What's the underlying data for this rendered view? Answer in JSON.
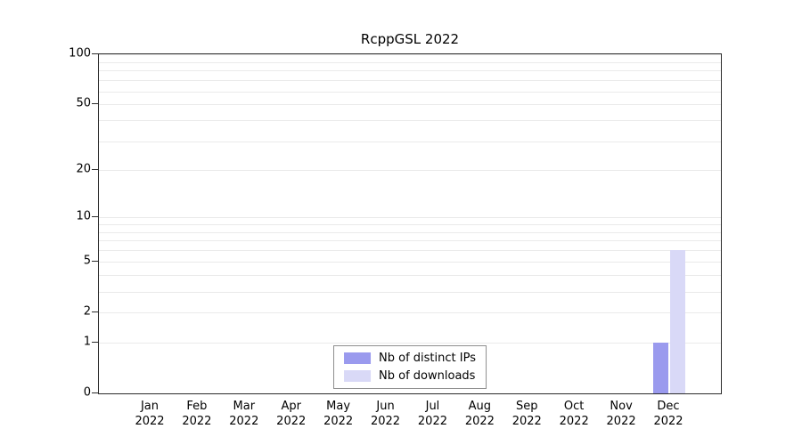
{
  "chart_data": {
    "type": "bar",
    "title": "RcppGSL 2022",
    "categories": [
      "Jan",
      "Feb",
      "Mar",
      "Apr",
      "May",
      "Jun",
      "Jul",
      "Aug",
      "Sep",
      "Oct",
      "Nov",
      "Dec"
    ],
    "year": "2022",
    "series": [
      {
        "name": "Nb of distinct IPs",
        "color": "#9a9aee",
        "values": [
          0,
          0,
          0,
          0,
          0,
          0,
          0,
          0,
          0,
          0,
          0,
          1
        ]
      },
      {
        "name": "Nb of downloads",
        "color": "#d9d9f7",
        "values": [
          0,
          0,
          0,
          0,
          0,
          0,
          0,
          0,
          0,
          0,
          0,
          6
        ]
      }
    ],
    "y_ticks": [
      0,
      1,
      2,
      5,
      10,
      20,
      50,
      100
    ],
    "minor_gridlines": [
      1,
      2,
      3,
      4,
      5,
      6,
      7,
      8,
      9,
      10,
      20,
      30,
      40,
      50,
      60,
      70,
      80,
      90,
      100
    ],
    "scale": "log1p",
    "ylim": [
      0,
      100
    ],
    "grid": "horizontal-minor",
    "legend_position": "bottom-center"
  }
}
